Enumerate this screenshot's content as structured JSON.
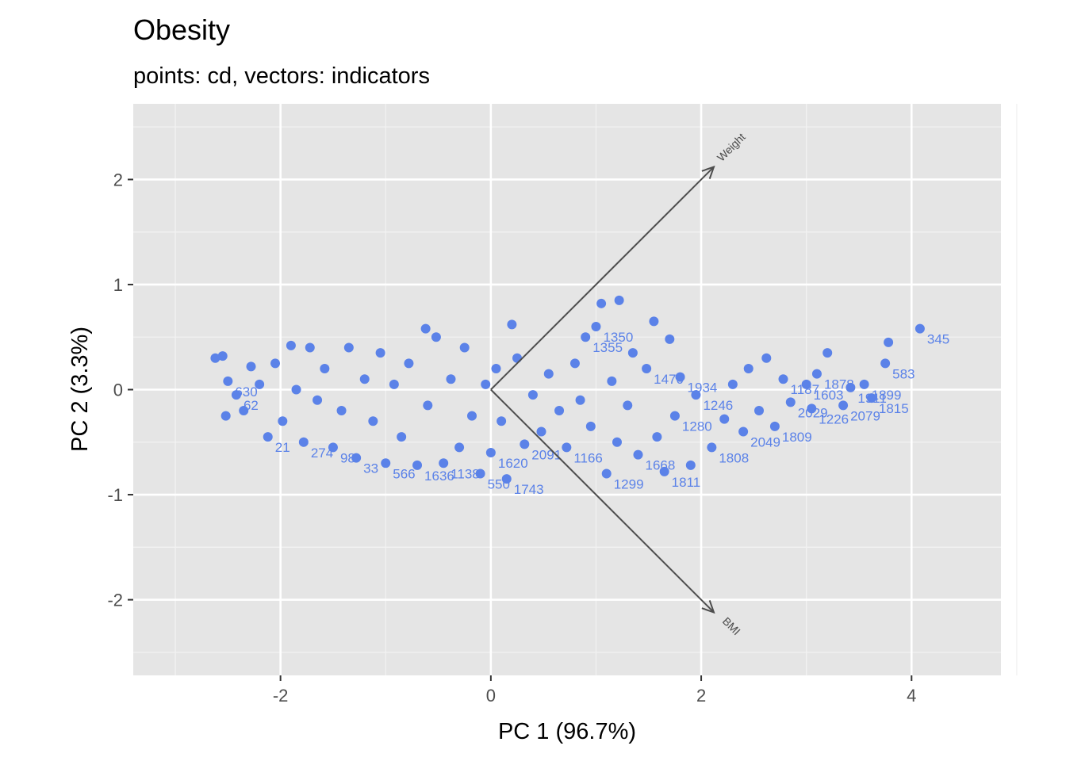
{
  "chart_data": {
    "type": "scatter",
    "title": "Obesity",
    "subtitle": "points: cd, vectors: indicators",
    "xlabel": "PC 1 (96.7%)",
    "ylabel": "PC 2 (3.3%)",
    "xlim": [
      -3.4,
      4.85
    ],
    "ylim": [
      -2.72,
      2.72
    ],
    "xticks": [
      -2,
      0,
      2,
      4
    ],
    "yticks": [
      -2,
      -1,
      0,
      1,
      2
    ],
    "xtick_labels": [
      "-2",
      "0",
      "2",
      "4"
    ],
    "ytick_labels": [
      "-2",
      "-1",
      "0",
      "1",
      "2"
    ],
    "grid": true,
    "point_color": "#5b82e8",
    "panel_color": "#e5e5e5",
    "vector_color": "#4d4d4d",
    "vectors": [
      {
        "name": "Weight",
        "x": 2.12,
        "y": 2.12
      },
      {
        "name": "BMI",
        "x": 2.12,
        "y": -2.12
      }
    ],
    "points": [
      {
        "x": 4.08,
        "y": 0.58,
        "label": "345"
      },
      {
        "x": 3.78,
        "y": 0.45
      },
      {
        "x": 3.75,
        "y": 0.25,
        "label": "583"
      },
      {
        "x": 3.62,
        "y": -0.08,
        "label": "1815"
      },
      {
        "x": 3.55,
        "y": 0.05,
        "label": "1899"
      },
      {
        "x": 3.42,
        "y": 0.02,
        "label": "1911"
      },
      {
        "x": 3.35,
        "y": -0.15,
        "label": "2079"
      },
      {
        "x": 3.2,
        "y": 0.35
      },
      {
        "x": 3.1,
        "y": 0.15,
        "label": "1878"
      },
      {
        "x": 3.05,
        "y": -0.18,
        "label": "1226"
      },
      {
        "x": 3.0,
        "y": 0.05,
        "label": "1603"
      },
      {
        "x": 2.85,
        "y": -0.12,
        "label": "2029"
      },
      {
        "x": 2.78,
        "y": 0.1,
        "label": "1187"
      },
      {
        "x": 2.7,
        "y": -0.35,
        "label": "1809"
      },
      {
        "x": 2.62,
        "y": 0.3
      },
      {
        "x": 2.55,
        "y": -0.2
      },
      {
        "x": 2.45,
        "y": 0.2
      },
      {
        "x": 2.4,
        "y": -0.4,
        "label": "2049"
      },
      {
        "x": 2.3,
        "y": 0.05
      },
      {
        "x": 2.22,
        "y": -0.28
      },
      {
        "x": 2.1,
        "y": -0.55,
        "label": "1808"
      },
      {
        "x": 1.95,
        "y": -0.05,
        "label": "1246"
      },
      {
        "x": 1.9,
        "y": -0.72
      },
      {
        "x": 1.8,
        "y": 0.12,
        "label": "1934"
      },
      {
        "x": 1.75,
        "y": -0.25,
        "label": "1280"
      },
      {
        "x": 1.7,
        "y": 0.48
      },
      {
        "x": 1.65,
        "y": -0.78,
        "label": "1811"
      },
      {
        "x": 1.58,
        "y": -0.45
      },
      {
        "x": 1.55,
        "y": 0.65
      },
      {
        "x": 1.48,
        "y": 0.2,
        "label": "1470"
      },
      {
        "x": 1.4,
        "y": -0.62,
        "label": "1668"
      },
      {
        "x": 1.35,
        "y": 0.35
      },
      {
        "x": 1.3,
        "y": -0.15
      },
      {
        "x": 1.22,
        "y": 0.85
      },
      {
        "x": 1.2,
        "y": -0.5
      },
      {
        "x": 1.15,
        "y": 0.08
      },
      {
        "x": 1.1,
        "y": -0.8,
        "label": "1299"
      },
      {
        "x": 1.05,
        "y": 0.82
      },
      {
        "x": 1.0,
        "y": 0.6,
        "label": "1350"
      },
      {
        "x": 0.95,
        "y": -0.35
      },
      {
        "x": 0.9,
        "y": 0.5,
        "label": "1355"
      },
      {
        "x": 0.85,
        "y": -0.1
      },
      {
        "x": 0.8,
        "y": 0.25
      },
      {
        "x": 0.72,
        "y": -0.55,
        "label": "1166"
      },
      {
        "x": 0.65,
        "y": -0.2
      },
      {
        "x": 0.55,
        "y": 0.15
      },
      {
        "x": 0.48,
        "y": -0.4
      },
      {
        "x": 0.4,
        "y": -0.05
      },
      {
        "x": 0.32,
        "y": -0.52,
        "label": "2091"
      },
      {
        "x": 0.25,
        "y": 0.3
      },
      {
        "x": 0.2,
        "y": 0.62
      },
      {
        "x": 0.15,
        "y": -0.85,
        "label": "1743"
      },
      {
        "x": 0.1,
        "y": -0.3
      },
      {
        "x": 0.05,
        "y": 0.2
      },
      {
        "x": 0.0,
        "y": -0.6,
        "label": "1620"
      },
      {
        "x": -0.05,
        "y": 0.05
      },
      {
        "x": -0.1,
        "y": -0.8,
        "label": "550"
      },
      {
        "x": -0.18,
        "y": -0.25
      },
      {
        "x": -0.25,
        "y": 0.4
      },
      {
        "x": -0.3,
        "y": -0.55
      },
      {
        "x": -0.38,
        "y": 0.1
      },
      {
        "x": -0.45,
        "y": -0.7,
        "label": "1138"
      },
      {
        "x": -0.52,
        "y": 0.5
      },
      {
        "x": -0.6,
        "y": -0.15
      },
      {
        "x": -0.62,
        "y": 0.58
      },
      {
        "x": -0.7,
        "y": -0.72,
        "label": "1636"
      },
      {
        "x": -0.78,
        "y": 0.25
      },
      {
        "x": -0.85,
        "y": -0.45
      },
      {
        "x": -0.92,
        "y": 0.05
      },
      {
        "x": -1.0,
        "y": -0.7,
        "label": "566"
      },
      {
        "x": -1.05,
        "y": 0.35
      },
      {
        "x": -1.12,
        "y": -0.3
      },
      {
        "x": -1.2,
        "y": 0.1
      },
      {
        "x": -1.28,
        "y": -0.65,
        "label": "33"
      },
      {
        "x": -1.35,
        "y": 0.4
      },
      {
        "x": -1.42,
        "y": -0.2
      },
      {
        "x": -1.5,
        "y": -0.55,
        "label": "98"
      },
      {
        "x": -1.58,
        "y": 0.2
      },
      {
        "x": -1.65,
        "y": -0.1
      },
      {
        "x": -1.72,
        "y": 0.4
      },
      {
        "x": -1.78,
        "y": -0.5,
        "label": "274"
      },
      {
        "x": -1.85,
        "y": 0.0
      },
      {
        "x": -1.9,
        "y": 0.42
      },
      {
        "x": -1.98,
        "y": -0.3
      },
      {
        "x": -2.05,
        "y": 0.25
      },
      {
        "x": -2.12,
        "y": -0.45,
        "label": "21"
      },
      {
        "x": -2.2,
        "y": 0.05
      },
      {
        "x": -2.28,
        "y": 0.22
      },
      {
        "x": -2.35,
        "y": -0.2
      },
      {
        "x": -2.42,
        "y": -0.05,
        "label": "62"
      },
      {
        "x": -2.5,
        "y": 0.08,
        "label": "630"
      },
      {
        "x": -2.52,
        "y": -0.25
      },
      {
        "x": -2.55,
        "y": 0.32
      },
      {
        "x": -2.62,
        "y": 0.3
      }
    ]
  }
}
